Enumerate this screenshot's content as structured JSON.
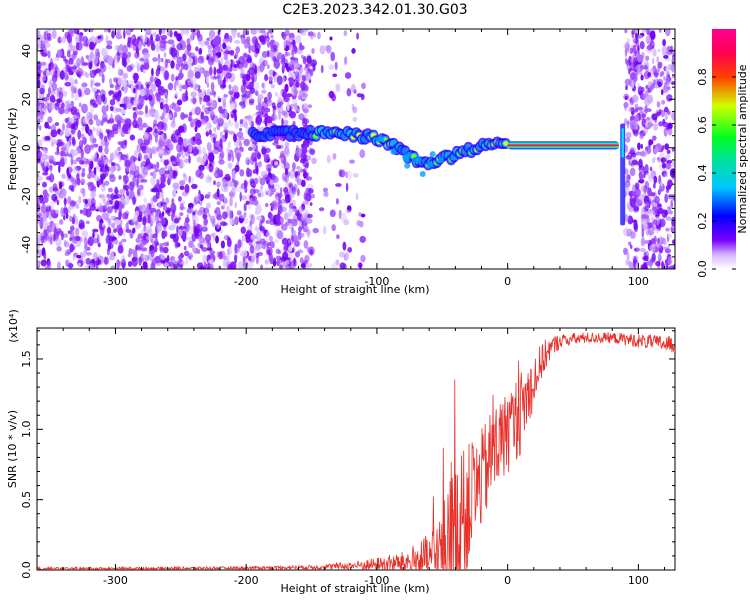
{
  "title": "C2E3.2023.342.01.30.G03",
  "chart_data": [
    {
      "type": "heatmap",
      "xlabel": "Height of straight line (km)",
      "ylabel": "Frequency (Hz)",
      "xlim": [
        -360,
        128
      ],
      "ylim": [
        -50,
        49
      ],
      "xticks": [
        -300,
        -200,
        -100,
        0,
        100
      ],
      "yticks": [
        -40,
        -20,
        0,
        20,
        40
      ],
      "colorbar": {
        "label": "Normalized spectral amplitude",
        "range": [
          0,
          1
        ],
        "ticks": [
          "0.0",
          "0.2",
          "0.4",
          "0.6",
          "0.8"
        ],
        "colors": [
          "#ffffff",
          "#7a00ff",
          "#0000ff",
          "#00c8ff",
          "#00ff40",
          "#f0ff00",
          "#ff1a1a",
          "#ff0080"
        ]
      },
      "signal_track": {
        "points": [
          [
            -195,
            6
          ],
          [
            -170,
            6
          ],
          [
            -150,
            6
          ],
          [
            -130,
            6
          ],
          [
            -110,
            5
          ],
          [
            -95,
            3
          ],
          [
            -80,
            -2
          ],
          [
            -65,
            -7
          ],
          [
            -55,
            -5
          ],
          [
            -45,
            -4
          ],
          [
            -35,
            -2
          ],
          [
            -25,
            0
          ],
          [
            -10,
            1
          ],
          [
            0,
            1
          ],
          [
            85,
            1
          ]
        ],
        "strong_band": [
          0,
          85
        ],
        "vertical_feature_x": 88
      },
      "noise_regions": [
        [
          -360,
          -150
        ],
        [
          90,
          128
        ]
      ]
    },
    {
      "type": "line",
      "xlabel": "Height of straight line (km)",
      "ylabel": "SNR (10 * v/v)",
      "multiplier": "(x10⁴)",
      "xlim": [
        -360,
        128
      ],
      "ylim": [
        0,
        1.72
      ],
      "xticks": [
        -300,
        -200,
        -100,
        0,
        100
      ],
      "yticks": [
        "0.0",
        "0.5",
        "1.0",
        "1.5"
      ],
      "color": "#e8302a",
      "envelope": {
        "x": [
          -360,
          -300,
          -200,
          -150,
          -120,
          -100,
          -80,
          -60,
          -50,
          -40,
          -30,
          -20,
          -10,
          0,
          10,
          20,
          30,
          40,
          60,
          80,
          100,
          128
        ],
        "base": [
          0.01,
          0.01,
          0.015,
          0.02,
          0.03,
          0.04,
          0.05,
          0.08,
          0.12,
          0.25,
          0.45,
          0.65,
          0.85,
          0.98,
          1.12,
          1.35,
          1.55,
          1.63,
          1.65,
          1.65,
          1.63,
          1.6
        ],
        "amp": [
          0.01,
          0.01,
          0.01,
          0.015,
          0.03,
          0.05,
          0.08,
          0.18,
          0.35,
          0.55,
          0.45,
          0.35,
          0.35,
          0.3,
          0.3,
          0.2,
          0.1,
          0.05,
          0.04,
          0.04,
          0.05,
          0.06
        ]
      }
    }
  ]
}
